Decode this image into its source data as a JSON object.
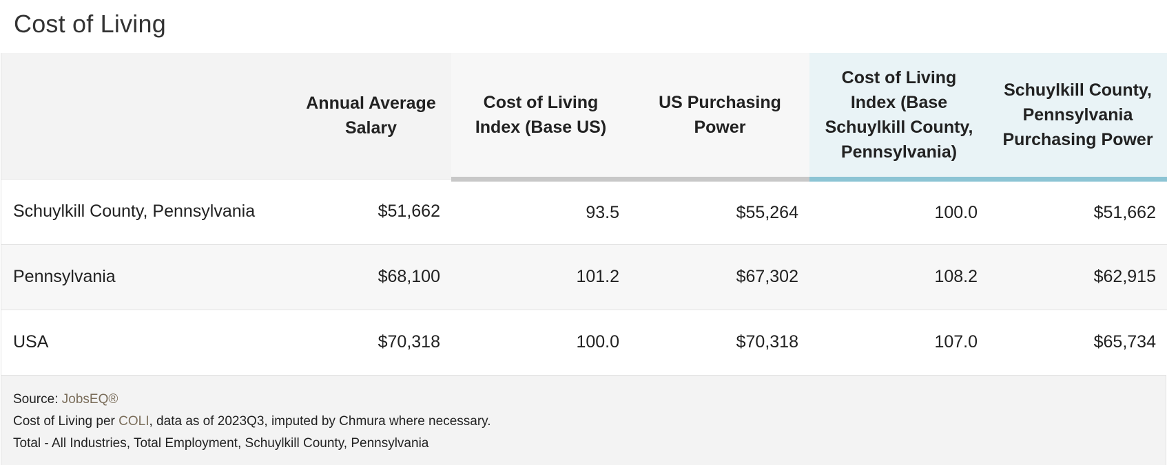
{
  "title": "Cost of Living",
  "table": {
    "headers": [
      "",
      "Annual Average Salary",
      "Cost of Living Index (Base US)",
      "US Purchasing Power",
      "Cost of Living Index (Base Schuylkill County, Pennsylvania)",
      "Schuylkill County, Pennsylvania Purchasing Power"
    ],
    "rows": [
      [
        "Schuylkill County, Pennsylvania",
        "$51,662",
        "93.5",
        "$55,264",
        "100.0",
        "$51,662"
      ],
      [
        "Pennsylvania",
        "$68,100",
        "101.2",
        "$67,302",
        "108.2",
        "$62,915"
      ],
      [
        "USA",
        "$70,318",
        "100.0",
        "$70,318",
        "107.0",
        "$65,734"
      ]
    ],
    "header_colors": {
      "us_group_underline": "#c8c8c8",
      "local_group_background": "#e9f3f6",
      "local_group_underline": "#8cc4d4"
    }
  },
  "footer": {
    "source_prefix": "Source: ",
    "source_link": "JobsEQ®",
    "coli_prefix": "Cost of Living per ",
    "coli_link": "COLI",
    "coli_suffix": ", data as of 2023Q3, imputed by Chmura where necessary.",
    "scope": "Total - All Industries, Total Employment, Schuylkill County, Pennsylvania"
  }
}
